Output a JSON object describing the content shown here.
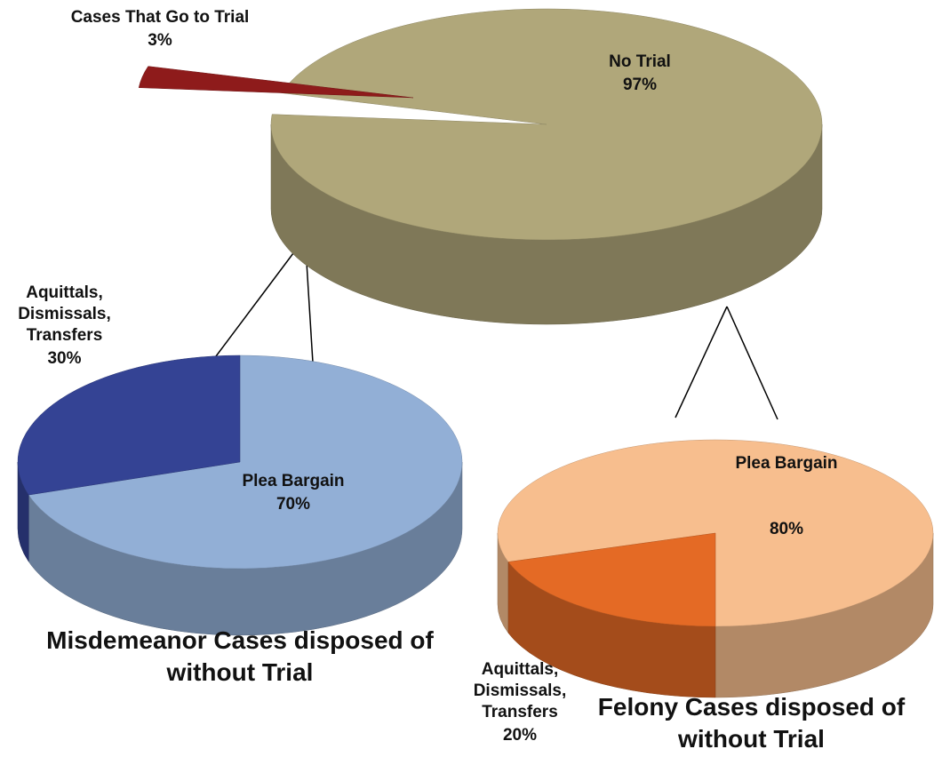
{
  "chart_data": [
    {
      "type": "pie",
      "categories": [
        "No Trial",
        "Cases That Go to Trial"
      ],
      "values": [
        97,
        3
      ],
      "value_labels": [
        "97%",
        "3%"
      ],
      "colors": [
        "#b0a77a",
        "#8e1b1b"
      ]
    },
    {
      "type": "pie",
      "title": "Misdemeanor Cases disposed of without Trial",
      "categories": [
        "Plea Bargain",
        "Aquittals, Dismissals, Transfers"
      ],
      "values": [
        70,
        30
      ],
      "value_labels": [
        "70%",
        "30%"
      ],
      "colors": [
        "#92afd6",
        "#344394"
      ]
    },
    {
      "type": "pie",
      "title": "Felony Cases disposed of without Trial",
      "categories": [
        "Plea Bargain",
        "Aquittals, Dismissals, Transfers"
      ],
      "values": [
        80,
        20
      ],
      "value_labels": [
        "80%",
        "20%"
      ],
      "colors": [
        "#f7be8e",
        "#e46a25"
      ]
    }
  ]
}
